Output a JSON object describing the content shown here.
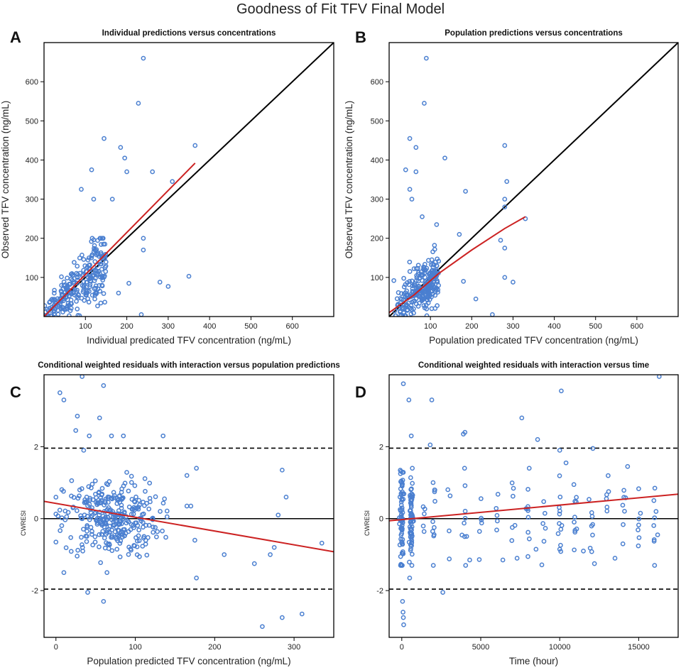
{
  "figure_title": "Goodness of Fit TFV Final Model",
  "colors": {
    "points": "#4a7fd0",
    "fit_line": "#cc2222",
    "identity_line": "#000000",
    "reference_line": "#000000"
  },
  "chart_data": [
    {
      "panel": "A",
      "type": "scatter",
      "title": "Individual predictions versus concentrations",
      "xlabel": "Individual predicated TFV concentration (ng/mL)",
      "ylabel": "Observed TFV concentration (ng/mL)",
      "xlim": [
        0,
        700
      ],
      "ylim": [
        0,
        700
      ],
      "xticks": [
        100,
        200,
        300,
        400,
        500,
        600
      ],
      "yticks": [
        100,
        200,
        300,
        400,
        500,
        600
      ],
      "identity_line": true,
      "fit_line": [
        [
          0,
          0
        ],
        [
          365,
          392
        ]
      ],
      "points_outliers": [
        [
          240,
          660
        ],
        [
          228,
          545
        ],
        [
          145,
          455
        ],
        [
          185,
          432
        ],
        [
          195,
          405
        ],
        [
          200,
          370
        ],
        [
          262,
          370
        ],
        [
          115,
          375
        ],
        [
          90,
          325
        ],
        [
          120,
          300
        ],
        [
          165,
          300
        ],
        [
          310,
          345
        ],
        [
          300,
          77
        ],
        [
          280,
          88
        ],
        [
          350,
          103
        ],
        [
          235,
          5
        ],
        [
          240,
          200
        ],
        [
          240,
          170
        ],
        [
          180,
          60
        ],
        [
          205,
          85
        ],
        [
          140,
          80
        ],
        [
          365,
          437
        ]
      ],
      "points_cloud": {
        "x_range": [
          0,
          150
        ],
        "y_range": [
          0,
          200
        ],
        "slope": 1.0,
        "n": 260
      }
    },
    {
      "panel": "B",
      "type": "scatter",
      "title": "Population predictions versus concentrations",
      "xlabel": "Population predicated TFV concentration (ng/mL)",
      "ylabel": "Observed TFV concentration (ng/mL)",
      "xlim": [
        0,
        700
      ],
      "ylim": [
        0,
        700
      ],
      "xticks": [
        100,
        200,
        300,
        400,
        500,
        600
      ],
      "yticks": [
        100,
        200,
        300,
        400,
        500,
        600
      ],
      "identity_line": true,
      "fit_line": [
        [
          0,
          10
        ],
        [
          60,
          55
        ],
        [
          120,
          110
        ],
        [
          200,
          170
        ],
        [
          280,
          225
        ],
        [
          330,
          255
        ]
      ],
      "points_outliers": [
        [
          90,
          660
        ],
        [
          85,
          545
        ],
        [
          50,
          455
        ],
        [
          65,
          432
        ],
        [
          135,
          405
        ],
        [
          40,
          375
        ],
        [
          65,
          370
        ],
        [
          50,
          325
        ],
        [
          55,
          300
        ],
        [
          80,
          255
        ],
        [
          185,
          320
        ],
        [
          280,
          437
        ],
        [
          285,
          345
        ],
        [
          280,
          300
        ],
        [
          280,
          280
        ],
        [
          330,
          250
        ],
        [
          270,
          195
        ],
        [
          280,
          175
        ],
        [
          280,
          100
        ],
        [
          250,
          5
        ],
        [
          210,
          45
        ],
        [
          180,
          90
        ],
        [
          300,
          88
        ],
        [
          115,
          235
        ],
        [
          170,
          210
        ]
      ],
      "points_cloud": {
        "x_range": [
          10,
          120
        ],
        "y_range": [
          0,
          200
        ],
        "slope": 1.2,
        "n": 260
      }
    },
    {
      "panel": "C",
      "type": "scatter",
      "title": "Conditional weighted residuals with interaction versus population predictions",
      "xlabel": "Population predicted TFV concentration (ng/mL)",
      "ylabel": "CWRESI",
      "xlim": [
        -15,
        350
      ],
      "ylim": [
        -3.3,
        4
      ],
      "xticks": [
        0,
        100,
        200,
        300
      ],
      "yticks": [
        -2,
        0,
        2
      ],
      "reference_lines": [
        -1.96,
        0,
        1.96
      ],
      "fit_line": [
        [
          -15,
          0.48
        ],
        [
          350,
          -0.92
        ]
      ],
      "points_outliers": [
        [
          5,
          3.5
        ],
        [
          10,
          3.3
        ],
        [
          33,
          3.95
        ],
        [
          60,
          3.7
        ],
        [
          27,
          2.85
        ],
        [
          55,
          2.8
        ],
        [
          25,
          2.45
        ],
        [
          42,
          2.3
        ],
        [
          70,
          2.3
        ],
        [
          85,
          2.3
        ],
        [
          135,
          2.3
        ],
        [
          35,
          1.9
        ],
        [
          165,
          1.2
        ],
        [
          177,
          1.4
        ],
        [
          285,
          1.35
        ],
        [
          290,
          0.6
        ],
        [
          280,
          0.1
        ],
        [
          335,
          -0.68
        ],
        [
          212,
          -1.0
        ],
        [
          250,
          -1.25
        ],
        [
          270,
          -1.0
        ],
        [
          275,
          -0.8
        ],
        [
          175,
          -0.6
        ],
        [
          177,
          -1.65
        ],
        [
          40,
          -2.05
        ],
        [
          60,
          -2.3
        ],
        [
          260,
          -3.0
        ],
        [
          285,
          -2.75
        ],
        [
          310,
          -2.65
        ],
        [
          10,
          -1.5
        ],
        [
          170,
          0.35
        ],
        [
          165,
          0.35
        ]
      ],
      "points_cloud": {
        "x_range": [
          0,
          140
        ],
        "y_range": [
          -1.5,
          1.5
        ],
        "center_x": 70,
        "n": 330
      }
    },
    {
      "panel": "D",
      "type": "scatter",
      "title": "Conditional weighted residuals with interaction versus time",
      "xlabel": "Time (hour)",
      "ylabel": "CWRESI",
      "xlim": [
        -800,
        17500
      ],
      "ylim": [
        -3.3,
        4
      ],
      "xticks": [
        0,
        5000,
        10000,
        15000
      ],
      "yticks": [
        -2,
        0,
        2
      ],
      "reference_lines": [
        -1.96,
        0,
        1.96
      ],
      "fit_line": [
        [
          -800,
          -0.06
        ],
        [
          17500,
          0.68
        ]
      ],
      "points_outliers": [
        [
          100,
          3.75
        ],
        [
          450,
          3.3
        ],
        [
          600,
          2.3
        ],
        [
          1900,
          3.3
        ],
        [
          1800,
          2.05
        ],
        [
          3900,
          2.35
        ],
        [
          4000,
          2.4
        ],
        [
          7600,
          2.8
        ],
        [
          8600,
          2.2
        ],
        [
          10000,
          1.9
        ],
        [
          10100,
          3.55
        ],
        [
          12100,
          1.95
        ],
        [
          16300,
          3.95
        ],
        [
          10400,
          1.55
        ],
        [
          14300,
          1.45
        ],
        [
          16100,
          0.2
        ],
        [
          16200,
          -0.45
        ],
        [
          12200,
          -1.25
        ],
        [
          11500,
          -0.9
        ],
        [
          14000,
          -0.7
        ],
        [
          13500,
          -1.1
        ],
        [
          10000,
          -0.85
        ],
        [
          8500,
          -0.85
        ],
        [
          7300,
          -1.1
        ],
        [
          6400,
          -1.15
        ],
        [
          4300,
          -1.15
        ],
        [
          2600,
          -2.05
        ],
        [
          500,
          -1.65
        ],
        [
          50,
          -2.3
        ],
        [
          80,
          -2.6
        ],
        [
          100,
          -2.75
        ],
        [
          120,
          -2.95
        ]
      ],
      "time_columns": [
        0,
        600,
        1400,
        2000,
        3000,
        4000,
        5000,
        6000,
        7000,
        8000,
        9000,
        10000,
        11000,
        12000,
        13000,
        14000,
        15000,
        16000
      ],
      "points_cloud": {
        "y_range": [
          -1.3,
          1.4
        ],
        "n": 260
      }
    }
  ],
  "panel_labels": [
    "A",
    "B",
    "C",
    "D"
  ]
}
